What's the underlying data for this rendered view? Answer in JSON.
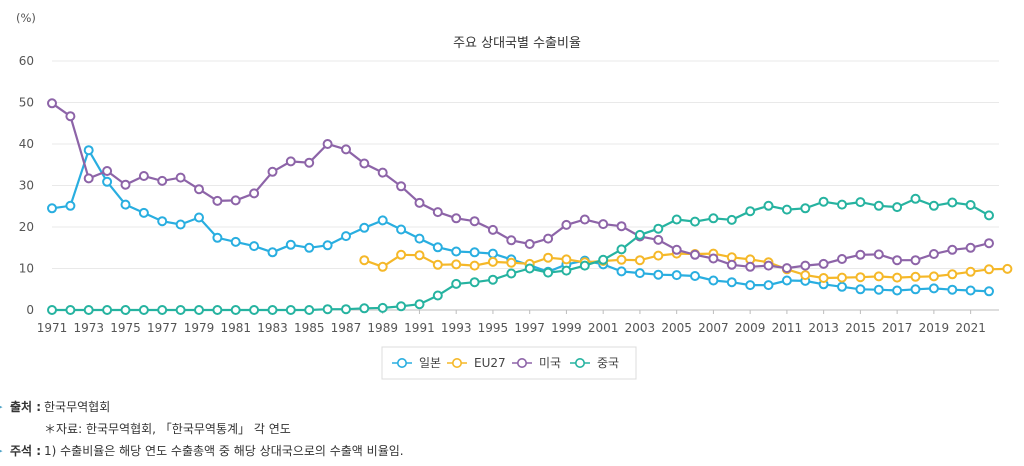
{
  "chart_data": {
    "type": "line",
    "title": "주요 상대국별 수출비율",
    "ylabel": "(%)",
    "ylim": [
      0,
      60
    ],
    "yticks": [
      0,
      10,
      20,
      30,
      40,
      50,
      60
    ],
    "xlim": [
      1971,
      2022
    ],
    "xticks": [
      1971,
      1973,
      1975,
      1977,
      1979,
      1981,
      1983,
      1985,
      1987,
      1989,
      1991,
      1993,
      1995,
      1997,
      1999,
      2001,
      2003,
      2005,
      2007,
      2009,
      2011,
      2013,
      2015,
      2017,
      2019,
      2021
    ],
    "legend_position": "bottom-center",
    "grid": true,
    "series": [
      {
        "name": "일본",
        "color": "#29aee0",
        "start": 1971,
        "values": [
          24.5,
          25.1,
          38.5,
          30.9,
          25.4,
          23.4,
          21.4,
          20.6,
          22.3,
          17.4,
          16.4,
          15.4,
          13.9,
          15.7,
          15.0,
          15.6,
          17.8,
          19.8,
          21.6,
          19.4,
          17.2,
          15.1,
          14.1,
          13.9,
          13.6,
          12.2,
          10.8,
          9.2,
          11.0,
          11.9,
          11.0,
          9.3,
          8.9,
          8.5,
          8.4,
          8.2,
          7.1,
          6.7,
          6.0,
          6.0,
          7.1,
          7.0,
          6.2,
          5.6,
          5.0,
          4.9,
          4.7,
          5.0,
          5.2,
          4.9,
          4.7,
          4.5
        ]
      },
      {
        "name": "EU27",
        "color": "#f5b829",
        "start": 1988,
        "values": [
          12.0,
          10.4,
          13.3,
          13.2,
          10.9,
          11.0,
          10.7,
          11.6,
          11.4,
          11.1,
          12.6,
          12.2,
          11.5,
          11.8,
          12.1,
          12.0,
          13.1,
          13.6,
          13.5,
          13.6,
          12.7,
          12.2,
          11.5,
          9.8,
          8.4,
          7.7,
          7.8,
          7.9,
          8.1,
          7.8,
          8.0,
          8.1,
          8.6,
          9.2,
          9.8,
          9.9
        ]
      },
      {
        "name": "미국",
        "color": "#8d64a8",
        "start": 1971,
        "values": [
          49.8,
          46.7,
          31.7,
          33.5,
          30.2,
          32.3,
          31.1,
          31.9,
          29.1,
          26.3,
          26.4,
          28.1,
          33.3,
          35.8,
          35.5,
          40.0,
          38.7,
          35.3,
          33.1,
          29.8,
          25.8,
          23.6,
          22.1,
          21.4,
          19.3,
          16.8,
          15.9,
          17.2,
          20.5,
          21.8,
          20.7,
          20.2,
          17.7,
          16.9,
          14.5,
          13.3,
          12.4,
          10.9,
          10.4,
          10.7,
          10.1,
          10.7,
          11.1,
          12.3,
          13.3,
          13.4,
          12.0,
          12.0,
          13.5,
          14.5,
          15.0,
          16.1
        ]
      },
      {
        "name": "중국",
        "color": "#26b3a0",
        "start": 1971,
        "values": [
          0,
          0,
          0,
          0,
          0,
          0,
          0,
          0,
          0,
          0,
          0,
          0,
          0,
          0,
          0,
          0.2,
          0.2,
          0.4,
          0.5,
          0.9,
          1.4,
          3.5,
          6.3,
          6.7,
          7.3,
          8.8,
          10.0,
          9.0,
          9.5,
          10.7,
          12.1,
          14.6,
          18.1,
          19.6,
          21.8,
          21.3,
          22.1,
          21.7,
          23.8,
          25.1,
          24.2,
          24.5,
          26.1,
          25.4,
          26.0,
          25.1,
          24.8,
          26.8,
          25.1,
          25.9,
          25.3,
          22.8
        ]
      }
    ]
  },
  "notes": {
    "source_label": "출처 :",
    "source_value": "한국무역협회",
    "data_note": "＊자료: 한국무역협회, 「한국무역통계」 각 연도",
    "footnote_label": "주석 :",
    "footnote_value": "1) 수출비율은 해당 연도 수출총액 중 해당 상대국으로의 수출액 비율임."
  }
}
